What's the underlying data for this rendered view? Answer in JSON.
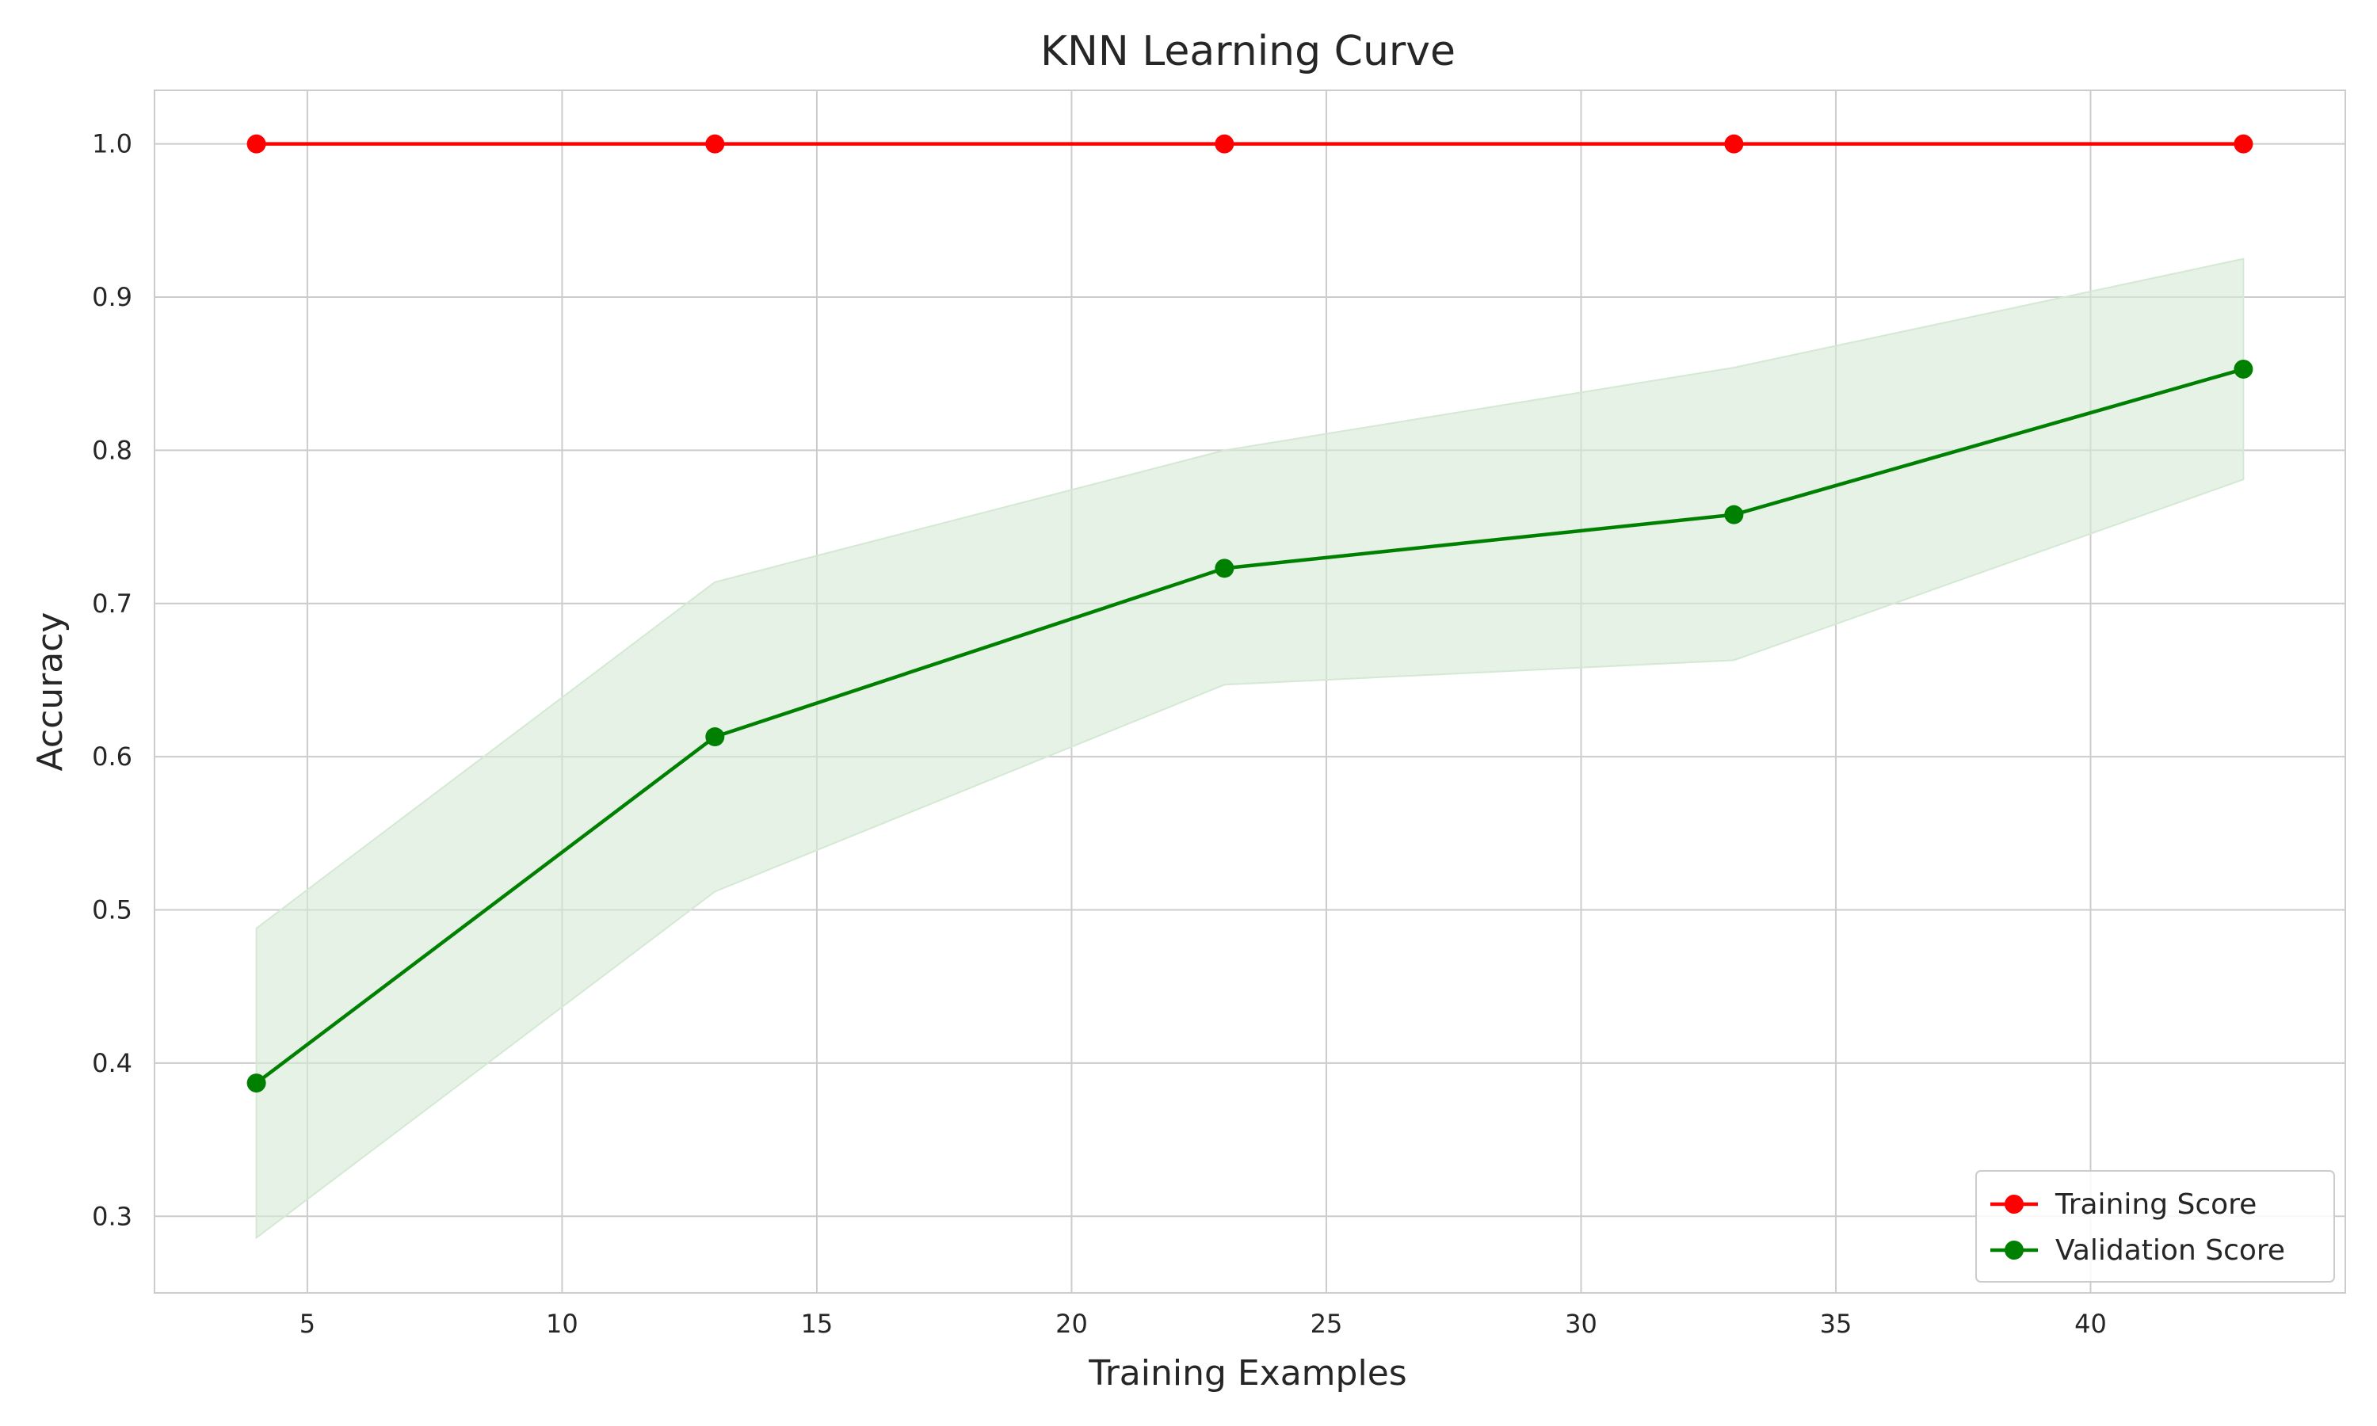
{
  "chart_data": {
    "type": "line",
    "title": "KNN Learning Curve",
    "xlabel": "Training Examples",
    "ylabel": "Accuracy",
    "xlim": [
      2,
      45
    ],
    "ylim": [
      0.25,
      1.035
    ],
    "xticks": [
      5,
      10,
      15,
      20,
      25,
      30,
      35,
      40
    ],
    "xtick_labels": [
      "5",
      "10",
      "15",
      "20",
      "25",
      "30",
      "35",
      "40"
    ],
    "yticks": [
      0.3,
      0.4,
      0.5,
      0.6,
      0.7,
      0.8,
      0.9,
      1.0
    ],
    "ytick_labels": [
      "0.3",
      "0.4",
      "0.5",
      "0.6",
      "0.7",
      "0.8",
      "0.9",
      "1.0"
    ],
    "grid": true,
    "legend_position": "lower-right",
    "x": [
      4,
      13,
      23,
      33,
      43
    ],
    "series": [
      {
        "name": "Training Score",
        "color": "#ff0000",
        "marker": "circle",
        "values": [
          1.0,
          1.0,
          1.0,
          1.0,
          1.0
        ],
        "band_lower": [
          1.0,
          1.0,
          1.0,
          1.0,
          1.0
        ],
        "band_upper": [
          1.0,
          1.0,
          1.0,
          1.0,
          1.0
        ]
      },
      {
        "name": "Validation Score",
        "color": "#008000",
        "band_color": "#d4e9d4",
        "marker": "circle",
        "values": [
          0.387,
          0.613,
          0.723,
          0.758,
          0.853
        ],
        "band_lower": [
          0.286,
          0.512,
          0.647,
          0.663,
          0.781
        ],
        "band_upper": [
          0.488,
          0.714,
          0.8,
          0.854,
          0.925
        ]
      }
    ]
  }
}
